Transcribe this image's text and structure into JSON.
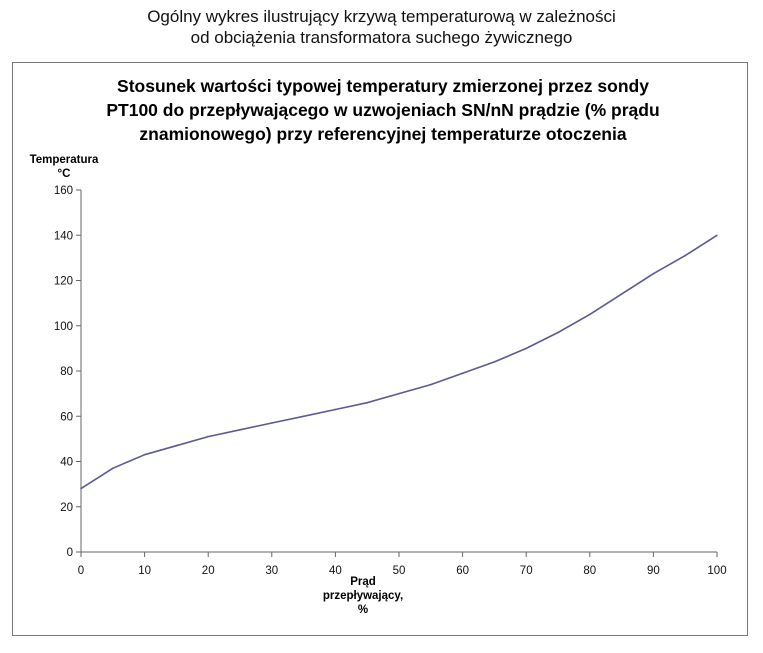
{
  "caption": {
    "line1": "Ogólny wykres ilustrujący krzywą temperaturową w zależności",
    "line2": "od obciążenia transformatora suchego żywicznego"
  },
  "chart_data": {
    "type": "line",
    "title_lines": [
      "Stosunek wartości typowej temperatury zmierzonej przez sondy",
      "PT100 do przepływającego w uzwojeniach SN/nN prądzie (% prądu",
      "znamionowego) przy referencyjnej temperaturze otoczenia"
    ],
    "ylabel_lines": [
      "Temperatura",
      "°C"
    ],
    "xlabel_lines": [
      "Prąd",
      "przepływający,",
      "%"
    ],
    "xlim": [
      0,
      100
    ],
    "ylim": [
      0,
      160
    ],
    "x_ticks": [
      0,
      10,
      20,
      30,
      40,
      50,
      60,
      70,
      80,
      90,
      100
    ],
    "y_ticks": [
      0,
      20,
      40,
      60,
      80,
      100,
      120,
      140,
      160
    ],
    "grid": false,
    "line_color": "#5b5a93",
    "series": [
      {
        "x": [
          0,
          5,
          10,
          15,
          20,
          25,
          30,
          35,
          40,
          45,
          50,
          55,
          60,
          65,
          70,
          75,
          80,
          85,
          90,
          95,
          100
        ],
        "y": [
          28,
          37,
          43,
          47,
          51,
          54,
          57,
          60,
          63,
          66,
          70,
          74,
          79,
          84,
          90,
          97,
          105,
          114,
          123,
          131,
          140
        ]
      }
    ]
  }
}
